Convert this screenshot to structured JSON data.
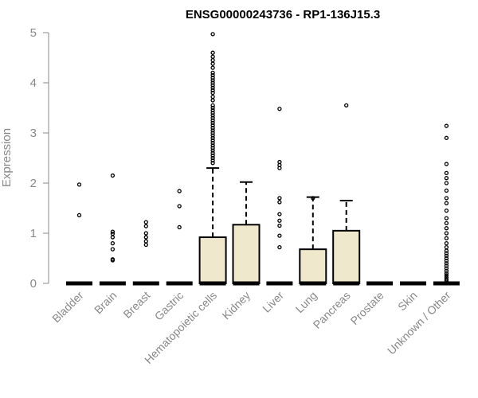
{
  "chart_data": {
    "type": "boxplot",
    "title": "ENSG00000243736 - RP1-136J15.3",
    "xlabel": "",
    "ylabel": "Expression",
    "ylim": [
      0,
      5
    ],
    "yticks": [
      0,
      1,
      2,
      3,
      4,
      5
    ],
    "box_fill": "#efe8cd",
    "box_stroke": "#000000",
    "categories": [
      "Bladder",
      "Brain",
      "Breast",
      "Gastric",
      "Hematopoietic cells",
      "Kidney",
      "Liver",
      "Lung",
      "Pancreas",
      "Prostate",
      "Skin",
      "Unknown / Other"
    ],
    "boxes": [
      {
        "category": "Bladder",
        "q1": 0,
        "median": 0,
        "q3": 0,
        "whisker_low": 0,
        "whisker_high": 0,
        "outliers": [
          1.36,
          1.97
        ]
      },
      {
        "category": "Brain",
        "q1": 0,
        "median": 0,
        "q3": 0,
        "whisker_low": 0,
        "whisker_high": 0,
        "outliers": [
          0.46,
          0.48,
          0.68,
          0.8,
          0.92,
          0.99,
          1.03,
          2.15
        ]
      },
      {
        "category": "Breast",
        "q1": 0,
        "median": 0,
        "q3": 0,
        "whisker_low": 0,
        "whisker_high": 0,
        "outliers": [
          0.77,
          0.84,
          0.92,
          1.0,
          1.14,
          1.22
        ]
      },
      {
        "category": "Gastric",
        "q1": 0,
        "median": 0,
        "q3": 0,
        "whisker_low": 0,
        "whisker_high": 0,
        "outliers": [
          1.12,
          1.54,
          1.84
        ]
      },
      {
        "category": "Hematopoietic cells",
        "q1": 0,
        "median": 0,
        "q3": 0.92,
        "whisker_low": 0,
        "whisker_high": 2.3,
        "outliers": [
          2.4,
          2.45,
          2.5,
          2.55,
          2.6,
          2.65,
          2.7,
          2.75,
          2.8,
          2.85,
          2.9,
          2.95,
          3.0,
          3.05,
          3.1,
          3.15,
          3.2,
          3.25,
          3.3,
          3.35,
          3.4,
          3.45,
          3.5,
          3.55,
          3.65,
          3.72,
          3.8,
          3.85,
          3.9,
          3.95,
          4.0,
          4.05,
          4.1,
          4.15,
          4.2,
          4.3,
          4.38,
          4.45,
          4.52,
          4.6,
          4.97
        ]
      },
      {
        "category": "Kidney",
        "q1": 0,
        "median": 0,
        "q3": 1.17,
        "whisker_low": 0,
        "whisker_high": 2.02,
        "outliers": []
      },
      {
        "category": "Liver",
        "q1": 0,
        "median": 0,
        "q3": 0,
        "whisker_low": 0,
        "whisker_high": 0,
        "outliers": [
          0.72,
          0.95,
          1.15,
          1.25,
          1.38,
          1.62,
          1.7,
          2.3,
          2.36,
          2.42,
          3.48
        ]
      },
      {
        "category": "Lung",
        "q1": 0,
        "median": 0,
        "q3": 0.68,
        "whisker_low": 0,
        "whisker_high": 1.72,
        "outliers": [
          1.7
        ]
      },
      {
        "category": "Pancreas",
        "q1": 0,
        "median": 0,
        "q3": 1.05,
        "whisker_low": 0,
        "whisker_high": 1.65,
        "outliers": [
          3.55
        ]
      },
      {
        "category": "Prostate",
        "q1": 0,
        "median": 0,
        "q3": 0,
        "whisker_low": 0,
        "whisker_high": 0,
        "outliers": []
      },
      {
        "category": "Skin",
        "q1": 0,
        "median": 0,
        "q3": 0,
        "whisker_low": 0,
        "whisker_high": 0,
        "outliers": []
      },
      {
        "category": "Unknown / Other",
        "q1": 0,
        "median": 0,
        "q3": 0,
        "whisker_low": 0,
        "whisker_high": 0,
        "outliers": [
          0.05,
          0.08,
          0.12,
          0.16,
          0.2,
          0.25,
          0.3,
          0.35,
          0.4,
          0.45,
          0.5,
          0.55,
          0.6,
          0.65,
          0.72,
          0.8,
          0.9,
          1.0,
          1.1,
          1.2,
          1.3,
          1.45,
          1.6,
          1.7,
          1.85,
          2.0,
          2.1,
          2.2,
          2.38,
          2.9,
          3.14
        ]
      }
    ]
  }
}
